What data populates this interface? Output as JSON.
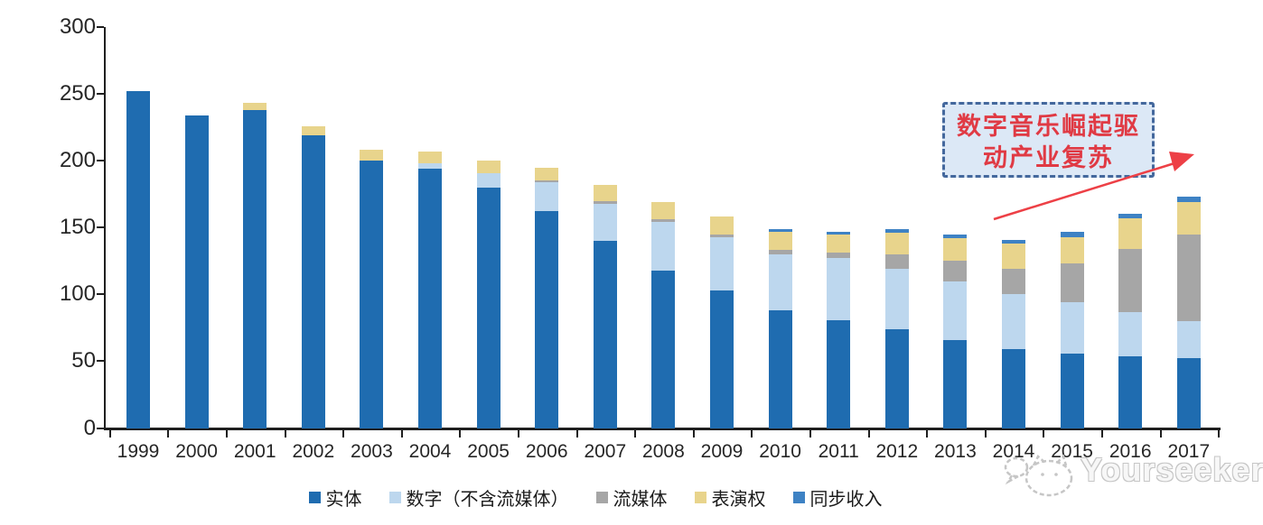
{
  "chart_data": {
    "type": "bar",
    "stacked": true,
    "title": "",
    "xlabel": "",
    "ylabel": "",
    "ylim": [
      0,
      300
    ],
    "yticks": [
      0,
      50,
      100,
      150,
      200,
      250,
      300
    ],
    "grid": false,
    "legend_position": "bottom",
    "categories": [
      "1999",
      "2000",
      "2001",
      "2002",
      "2003",
      "2004",
      "2005",
      "2006",
      "2007",
      "2008",
      "2009",
      "2010",
      "2011",
      "2012",
      "2013",
      "2014",
      "2015",
      "2016",
      "2017"
    ],
    "series": [
      {
        "name": "实体",
        "color": "#1F6CB0",
        "values": [
          252,
          234,
          238,
          219,
          200,
          194,
          180,
          162,
          140,
          118,
          103,
          88,
          81,
          74,
          66,
          59,
          56,
          54,
          52
        ]
      },
      {
        "name": "数字（不含流媒体）",
        "color": "#BDD7EE",
        "values": [
          0,
          0,
          0,
          0,
          0,
          4,
          11,
          22,
          28,
          36,
          40,
          42,
          46,
          45,
          44,
          41,
          38,
          33,
          28
        ]
      },
      {
        "name": "流媒体",
        "color": "#A6A6A6",
        "values": [
          0,
          0,
          0,
          0,
          0,
          0,
          0,
          1,
          2,
          2,
          2,
          3,
          4,
          11,
          15,
          19,
          29,
          47,
          65
        ]
      },
      {
        "name": "表演权",
        "color": "#E8D48C",
        "values": [
          0,
          0,
          5,
          7,
          8,
          9,
          9,
          10,
          12,
          13,
          13,
          14,
          14,
          16,
          17,
          19,
          20,
          23,
          24
        ]
      },
      {
        "name": "同步收入",
        "color": "#3E82C4",
        "values": [
          0,
          0,
          0,
          0,
          0,
          0,
          0,
          0,
          0,
          0,
          0,
          2,
          2,
          3,
          3,
          3,
          4,
          3,
          4
        ]
      }
    ]
  },
  "annotation": {
    "line1": "数字音乐崛起驱",
    "line2": "动产业复苏",
    "border_color": "#44689D",
    "background_color": "#DCE8F6",
    "text_color": "#E03A44",
    "arrow_color": "#ED4046"
  },
  "watermark": {
    "text": "Yourseeker",
    "color": "#C6C6C6"
  }
}
